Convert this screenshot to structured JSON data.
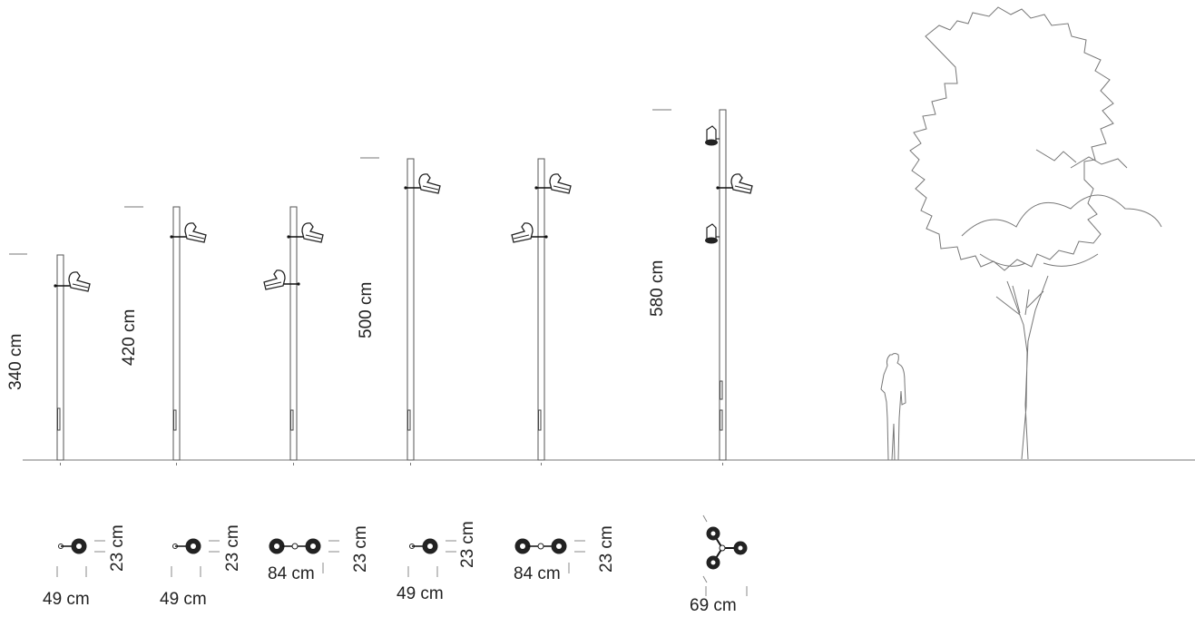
{
  "colors": {
    "line": "#555555",
    "text": "#222222",
    "background": "#ffffff"
  },
  "poles": [
    {
      "height_label": "340 cm",
      "diameter_label": "49 cm",
      "depth_label": "23 cm",
      "luminaires": 1
    },
    {
      "height_label": "420 cm",
      "diameter_label": "49 cm",
      "depth_label": "23 cm",
      "luminaires": 1
    },
    {
      "height_label": "",
      "diameter_label": "84 cm",
      "depth_label": "23 cm",
      "luminaires": 2
    },
    {
      "height_label": "500 cm",
      "diameter_label": "49 cm",
      "depth_label": "23 cm",
      "luminaires": 1
    },
    {
      "height_label": "",
      "diameter_label": "84 cm",
      "depth_label": "23 cm",
      "luminaires": 2
    },
    {
      "height_label": "580 cm",
      "diameter_label": "69 cm",
      "depth_label": "",
      "luminaires": 3
    }
  ],
  "icons": [
    "tree-icon",
    "person-silhouette-icon"
  ]
}
